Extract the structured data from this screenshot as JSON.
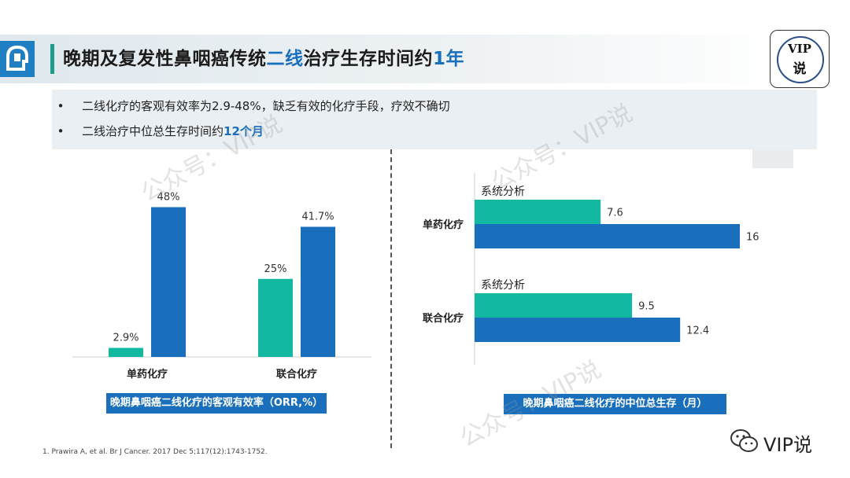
{
  "header": {
    "title_pre": "晚期及复发性鼻咽癌传统",
    "title_hl": "二线",
    "title_mid": "治疗生存时间约",
    "title_hl2": "1年",
    "badge_line1": "VIP",
    "badge_line2": "说"
  },
  "bullets": {
    "item1": "二线化疗的客观有效率为2.9-48%，缺乏有效的化疗手段，疗效不确切",
    "item2_pre": "二线治疗中位总生存时间约",
    "item2_hl": "12个月",
    "marker": "•"
  },
  "colors": {
    "teal": "#13b8a0",
    "blue": "#1a6fbd",
    "title_blue": "#1a6fbd"
  },
  "chart_data": [
    {
      "type": "bar",
      "title": "晚期鼻咽癌二线化疗的客观有效率（ORR,%）",
      "categories": [
        "单药化疗",
        "联合化疗"
      ],
      "series": [
        {
          "name": "teal",
          "values": [
            2.9,
            25
          ],
          "labels": [
            "2.9%",
            "25%"
          ]
        },
        {
          "name": "blue",
          "values": [
            48,
            41.7
          ],
          "labels": [
            "48%",
            "41.7%"
          ]
        }
      ],
      "ylim": [
        0,
        52
      ]
    },
    {
      "type": "bar-horizontal",
      "title": "晚期鼻咽癌二线化疗的中位总生存（月）",
      "categories": [
        "单药化疗",
        "联合化疗"
      ],
      "group_note": "系统分析",
      "series": [
        {
          "name": "teal",
          "values": [
            7.6,
            9.5
          ],
          "labels": [
            "7.6",
            "9.5"
          ]
        },
        {
          "name": "blue",
          "values": [
            16,
            12.4
          ],
          "labels": [
            "16",
            "12.4"
          ]
        }
      ],
      "xlim": [
        0,
        16.5
      ]
    }
  ],
  "footnote": "1. Prawira A, et al. Br J Cancer. 2017 Dec 5;117(12):1743-1752.",
  "watermark": {
    "text1": "公众号：VIP说",
    "text2": "公众号：VIP说",
    "text3": "公众号：VIP说"
  },
  "wechat": {
    "label": "VIP说"
  }
}
